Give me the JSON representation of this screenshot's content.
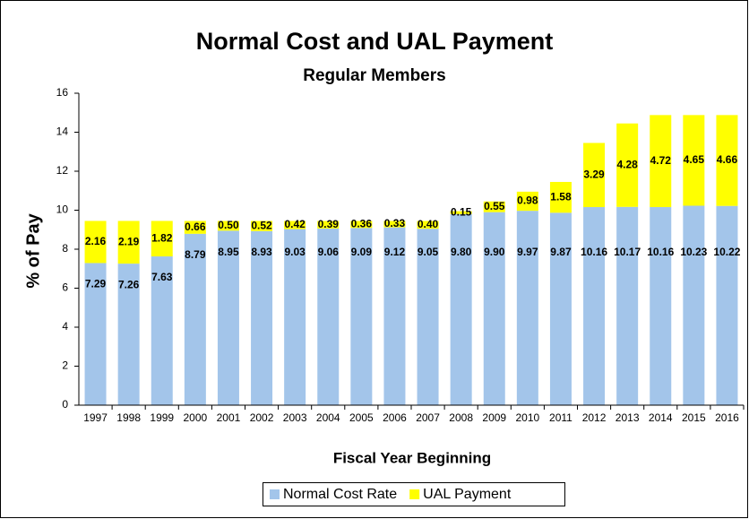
{
  "chart_data": {
    "type": "stacked_bar",
    "title": "Normal Cost and UAL Payment",
    "subtitle": "Regular Members",
    "y_label": "% of Pay",
    "x_label": "Fiscal Year Beginning",
    "categories": [
      "1997",
      "1998",
      "1999",
      "2000",
      "2001",
      "2002",
      "2003",
      "2004",
      "2005",
      "2006",
      "2007",
      "2008",
      "2009",
      "2010",
      "2011",
      "2012",
      "2013",
      "2014",
      "2015",
      "2016"
    ],
    "series": [
      {
        "name": "Normal Cost Rate",
        "color": "#a3c5ea",
        "values": [
          7.29,
          7.26,
          7.63,
          8.79,
          8.95,
          8.93,
          9.03,
          9.06,
          9.09,
          9.12,
          9.05,
          9.8,
          9.9,
          9.97,
          9.87,
          10.16,
          10.17,
          10.16,
          10.23,
          10.22
        ],
        "value_labels": [
          "7.29",
          "7.26",
          "7.63",
          "8.79",
          "8.95",
          "8.93",
          "9.03",
          "9.06",
          "9.09",
          "9.12",
          "9.05",
          "9.80",
          "9.90",
          "9.97",
          "9.87",
          "10.16",
          "10.17",
          "10.16",
          "10.23",
          "10.22"
        ]
      },
      {
        "name": "UAL Payment",
        "color": "#ffff00",
        "values": [
          2.16,
          2.19,
          1.82,
          0.66,
          0.5,
          0.52,
          0.42,
          0.39,
          0.36,
          0.33,
          0.4,
          0.15,
          0.55,
          0.98,
          1.58,
          3.29,
          4.28,
          4.72,
          4.65,
          4.66
        ],
        "value_labels": [
          "2.16",
          "2.19",
          "1.82",
          "0.66",
          "0.50",
          "0.52",
          "0.42",
          "0.39",
          "0.36",
          "0.33",
          "0.40",
          "0.15",
          "0.55",
          "0.98",
          "1.58",
          "3.29",
          "4.28",
          "4.72",
          "4.65",
          "4.66"
        ]
      }
    ],
    "ylim": [
      0,
      16
    ],
    "yticks": [
      0,
      2,
      4,
      6,
      8,
      10,
      12,
      14,
      16
    ],
    "legend": "bottom"
  }
}
